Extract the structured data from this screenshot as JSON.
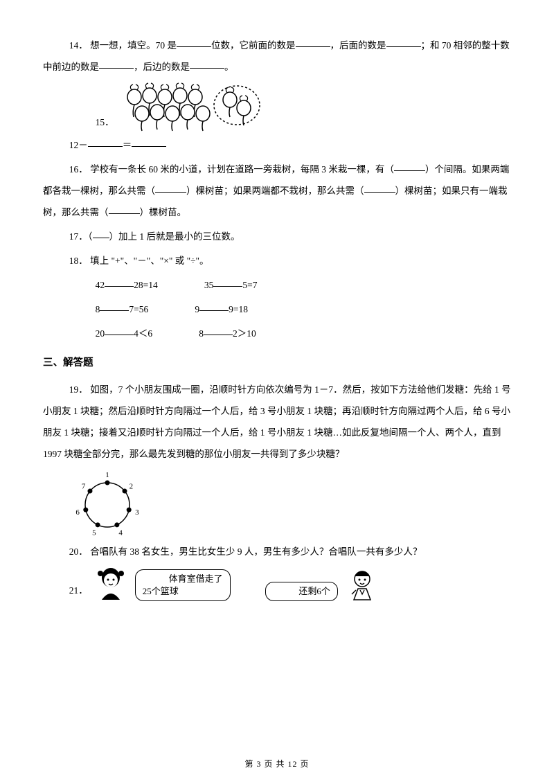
{
  "q14": {
    "num": "14",
    "pre": "．  想一想，填空。70 是",
    "t1": "位数，它前面的数是",
    "t2": "，后面的数是",
    "t3": "；和 70 相邻的整十数中前边的数是",
    "t4": "，后边的数是",
    "t5": "。"
  },
  "q15": {
    "num": "15",
    "dot": "．",
    "expr_pre": "12－",
    "expr_mid": "＝"
  },
  "q16": {
    "num": "16",
    "t1": "．  学校有一条长 60 米的小道，计划在道路一旁栽树，每隔 3 米栽一棵，有（",
    "t2": "）个间隔。如果两端都各栽一棵树，那么共需（",
    "t3": "）棵树苗；如果两端都不栽树，那么共需（",
    "t4": "）棵树苗；如果只有一端栽树，那么共需（",
    "t5": "）棵树苗。"
  },
  "q17": {
    "num": "17",
    "t1": "．（",
    "t2": "）加上 1 后就是最小的三位数。"
  },
  "q18": {
    "num": "18",
    "t1": "．  填上 \"+\"、\"－\"、\"×\" 或 \"÷\"。",
    "r1a_pre": "42",
    "r1a_post": "28=14",
    "r1b_pre": "35",
    "r1b_post": "5=7",
    "r2a_pre": "8",
    "r2a_post": "7=56",
    "r2b_pre": "9",
    "r2b_post": "9=18",
    "r3a_pre": "20",
    "r3a_post": "4＜6",
    "r3b_pre": "8",
    "r3b_post": "2＞10"
  },
  "section3": "三、解答题",
  "q19": {
    "num": "19",
    "text": "．  如图，7 个小朋友围成一圈，沿顺时针方向依次编号为 1－7．然后，按如下方法给他们发糖：先给 1 号小朋友 1 块糖；然后沿顺时针方向隔过一个人后，给 3 号小朋友 1 块糖；再沿顺时针方向隔过两个人后，给 6 号小朋友 1 块糖；接着又沿顺时针方向隔过一个人后，给 1 号小朋友 1 块糖…如此反复地间隔一个人、两个人，直到 1997 块糖全部分完，那么最先发到糖的那位小朋友一共得到了多少块糖？",
    "circle_labels": [
      "1",
      "2",
      "3",
      "4",
      "5",
      "6",
      "7"
    ]
  },
  "q20": {
    "num": "20",
    "text": "．  合唱队有 38 名女生，男生比女生少 9 人，男生有多少人？合唱队一共有多少人？"
  },
  "q21": {
    "num": "21",
    "dot": "．",
    "bubble1_l1": "体育室借走了",
    "bubble1_l2": "25个篮球",
    "bubble2": "还剩6个"
  },
  "footer": {
    "pre": "第 ",
    "cur": "3",
    "mid": " 页 共 ",
    "total": "12",
    "post": " 页"
  }
}
